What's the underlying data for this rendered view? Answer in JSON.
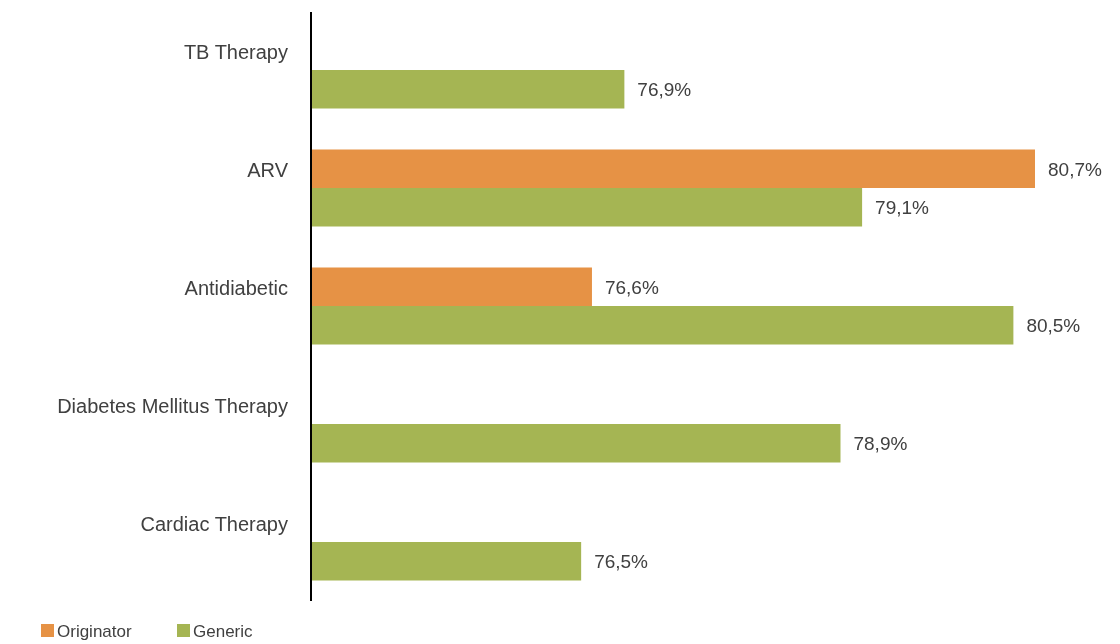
{
  "chart_data": {
    "type": "bar",
    "orientation": "horizontal",
    "categories": [
      "TB Therapy",
      "ARV",
      "Antidiabetic",
      "Diabetes Mellitus Therapy",
      "Cardiac Therapy"
    ],
    "xlim": [
      74,
      80.7
    ],
    "tick_labels": "y",
    "legend": "bottom left",
    "series": [
      {
        "name": "Originator",
        "color": "#e69245",
        "values": [
          null,
          80.7,
          76.6,
          null,
          null
        ],
        "value_labels": [
          null,
          "80,7%",
          "76,6%",
          null,
          null
        ]
      },
      {
        "name": "Generic",
        "color": "#a5b553",
        "values": [
          76.9,
          79.1,
          80.5,
          78.9,
          76.5
        ],
        "value_labels": [
          "76,9%",
          "79,1%",
          "80,5%",
          "78,9%",
          "76,5%"
        ]
      }
    ]
  }
}
